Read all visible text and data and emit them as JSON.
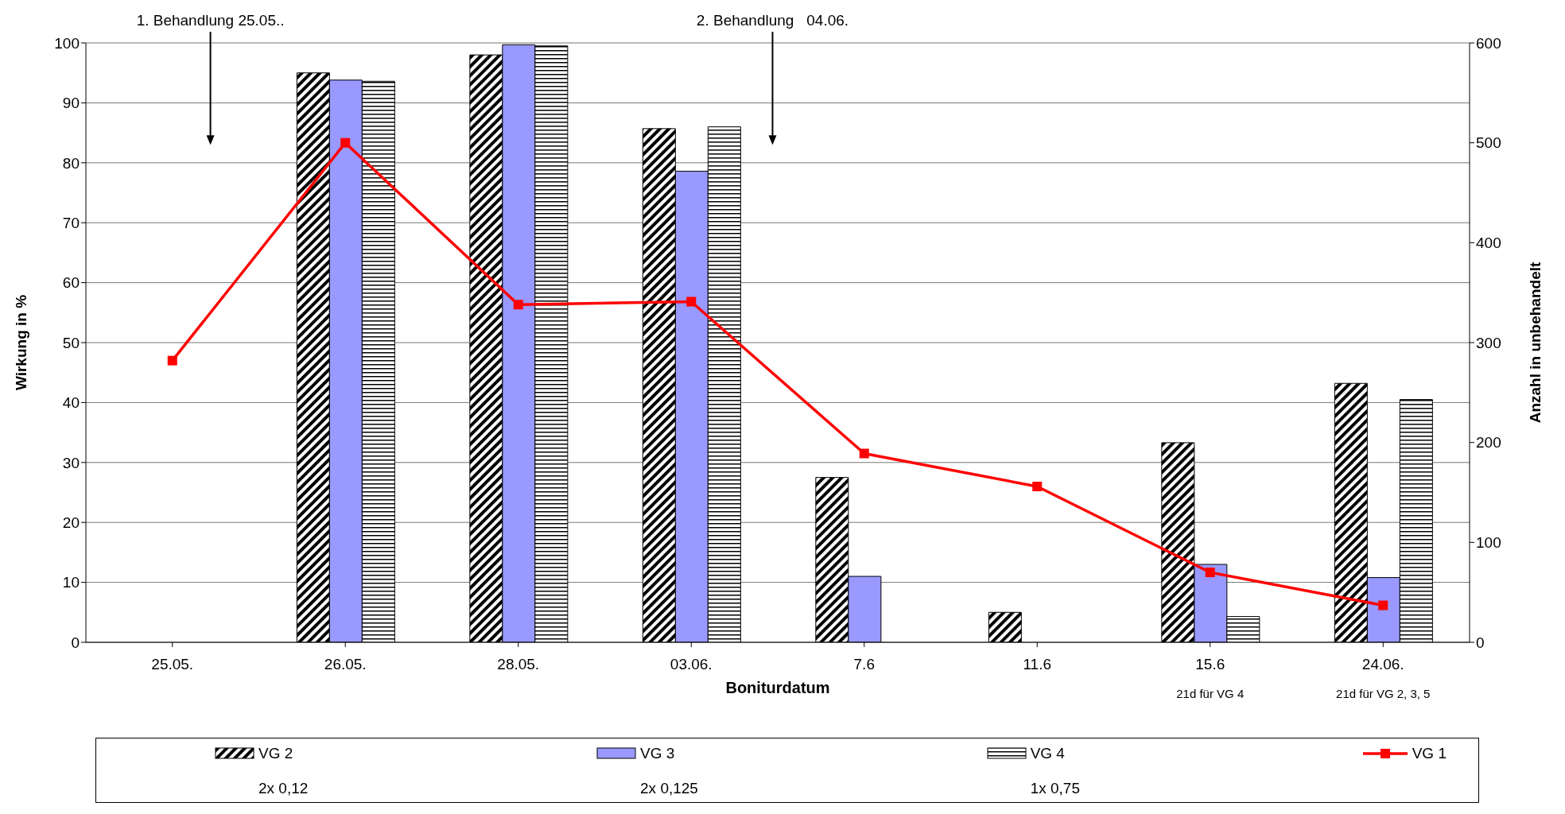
{
  "chart_data": {
    "type": "bar",
    "xlabel": "Boniturdatum",
    "ylabel": "Wirkung in %",
    "y2label": "Anzahl in unbehandelt",
    "categories": [
      "25.05.",
      "26.05.",
      "28.05.",
      "03.06.",
      "7.6",
      "11.6",
      "15.6",
      "24.06."
    ],
    "series": [
      {
        "name": "VG 2",
        "color": "#000000",
        "values": [
          null,
          95,
          98,
          85.7,
          27.5,
          5,
          33.3,
          43.2
        ]
      },
      {
        "name": "VG 3",
        "color": "#9999ff",
        "values": [
          null,
          93.8,
          99.7,
          78.6,
          11,
          null,
          13,
          10.8
        ]
      },
      {
        "name": "VG 4",
        "color": "#000000",
        "values": [
          null,
          93.6,
          99.5,
          86,
          null,
          null,
          4.3,
          40.5
        ]
      },
      {
        "name": "VG 1",
        "type": "line",
        "axis": "y2",
        "color": "#ff0000",
        "marker": "square",
        "values": [
          282,
          500,
          338,
          341,
          189,
          156,
          70,
          37
        ]
      }
    ],
    "ylim": [
      0,
      100
    ],
    "yticks": [
      0,
      10,
      20,
      30,
      40,
      50,
      60,
      70,
      80,
      90,
      100
    ],
    "y2lim": [
      0,
      600
    ],
    "y2ticks": [
      0,
      100,
      200,
      300,
      400,
      500,
      600
    ],
    "grid": "y",
    "legend": "bottom",
    "annotations": [
      "1. Behandlung 25.05..",
      "2. Behandlung   04.06.",
      "21d für VG 4",
      "21d für VG 2, 3, 5",
      "2x 0,12",
      "2x 0,125",
      "1x 0,75"
    ]
  }
}
